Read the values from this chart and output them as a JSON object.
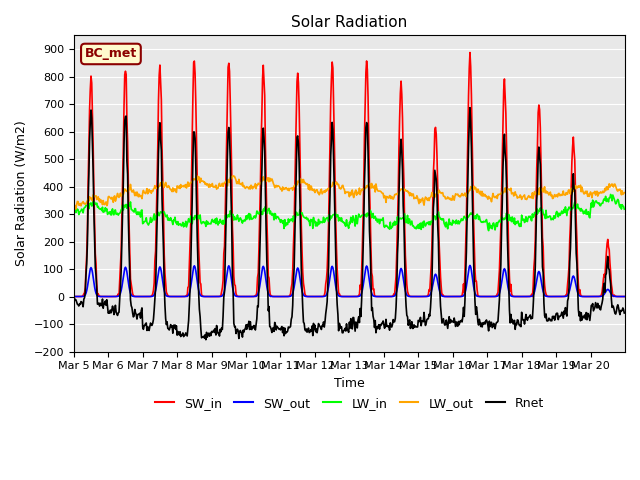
{
  "title": "Solar Radiation",
  "ylabel": "Solar Radiation (W/m2)",
  "xlabel": "Time",
  "ylim": [
    -200,
    950
  ],
  "yticks": [
    -200,
    -100,
    0,
    100,
    200,
    300,
    400,
    500,
    600,
    700,
    800,
    900
  ],
  "x_tick_labels": [
    "Mar 5",
    "Mar 6",
    "Mar 7",
    "Mar 8",
    "Mar 9",
    "Mar 10",
    "Mar 11",
    "Mar 12",
    "Mar 13",
    "Mar 14",
    "Mar 15",
    "Mar 16",
    "Mar 17",
    "Mar 18",
    "Mar 19",
    "Mar 20"
  ],
  "annotation_text": "BC_met",
  "annotation_color": "#8B0000",
  "annotation_bg": "#FFFACD",
  "bg_color": "#E8E8E8",
  "grid_color": "white",
  "series": {
    "SW_in": {
      "color": "red",
      "lw": 1.2
    },
    "SW_out": {
      "color": "blue",
      "lw": 1.2
    },
    "LW_in": {
      "color": "#00FF00",
      "lw": 1.2
    },
    "LW_out": {
      "color": "orange",
      "lw": 1.2
    },
    "Rnet": {
      "color": "black",
      "lw": 1.2
    }
  },
  "n_days": 16,
  "pts_per_day": 48,
  "sw_in_peaks": [
    810,
    820,
    830,
    860,
    860,
    845,
    800,
    845,
    855,
    785,
    625,
    870,
    780,
    700,
    575,
    200
  ],
  "lw_in_base": [
    310,
    300,
    270,
    260,
    270,
    285,
    270,
    265,
    275,
    255,
    260,
    270,
    260,
    280,
    300,
    330
  ],
  "lw_out_base": [
    335,
    360,
    380,
    400,
    400,
    400,
    390,
    380,
    375,
    360,
    350,
    365,
    360,
    360,
    370,
    375
  ]
}
